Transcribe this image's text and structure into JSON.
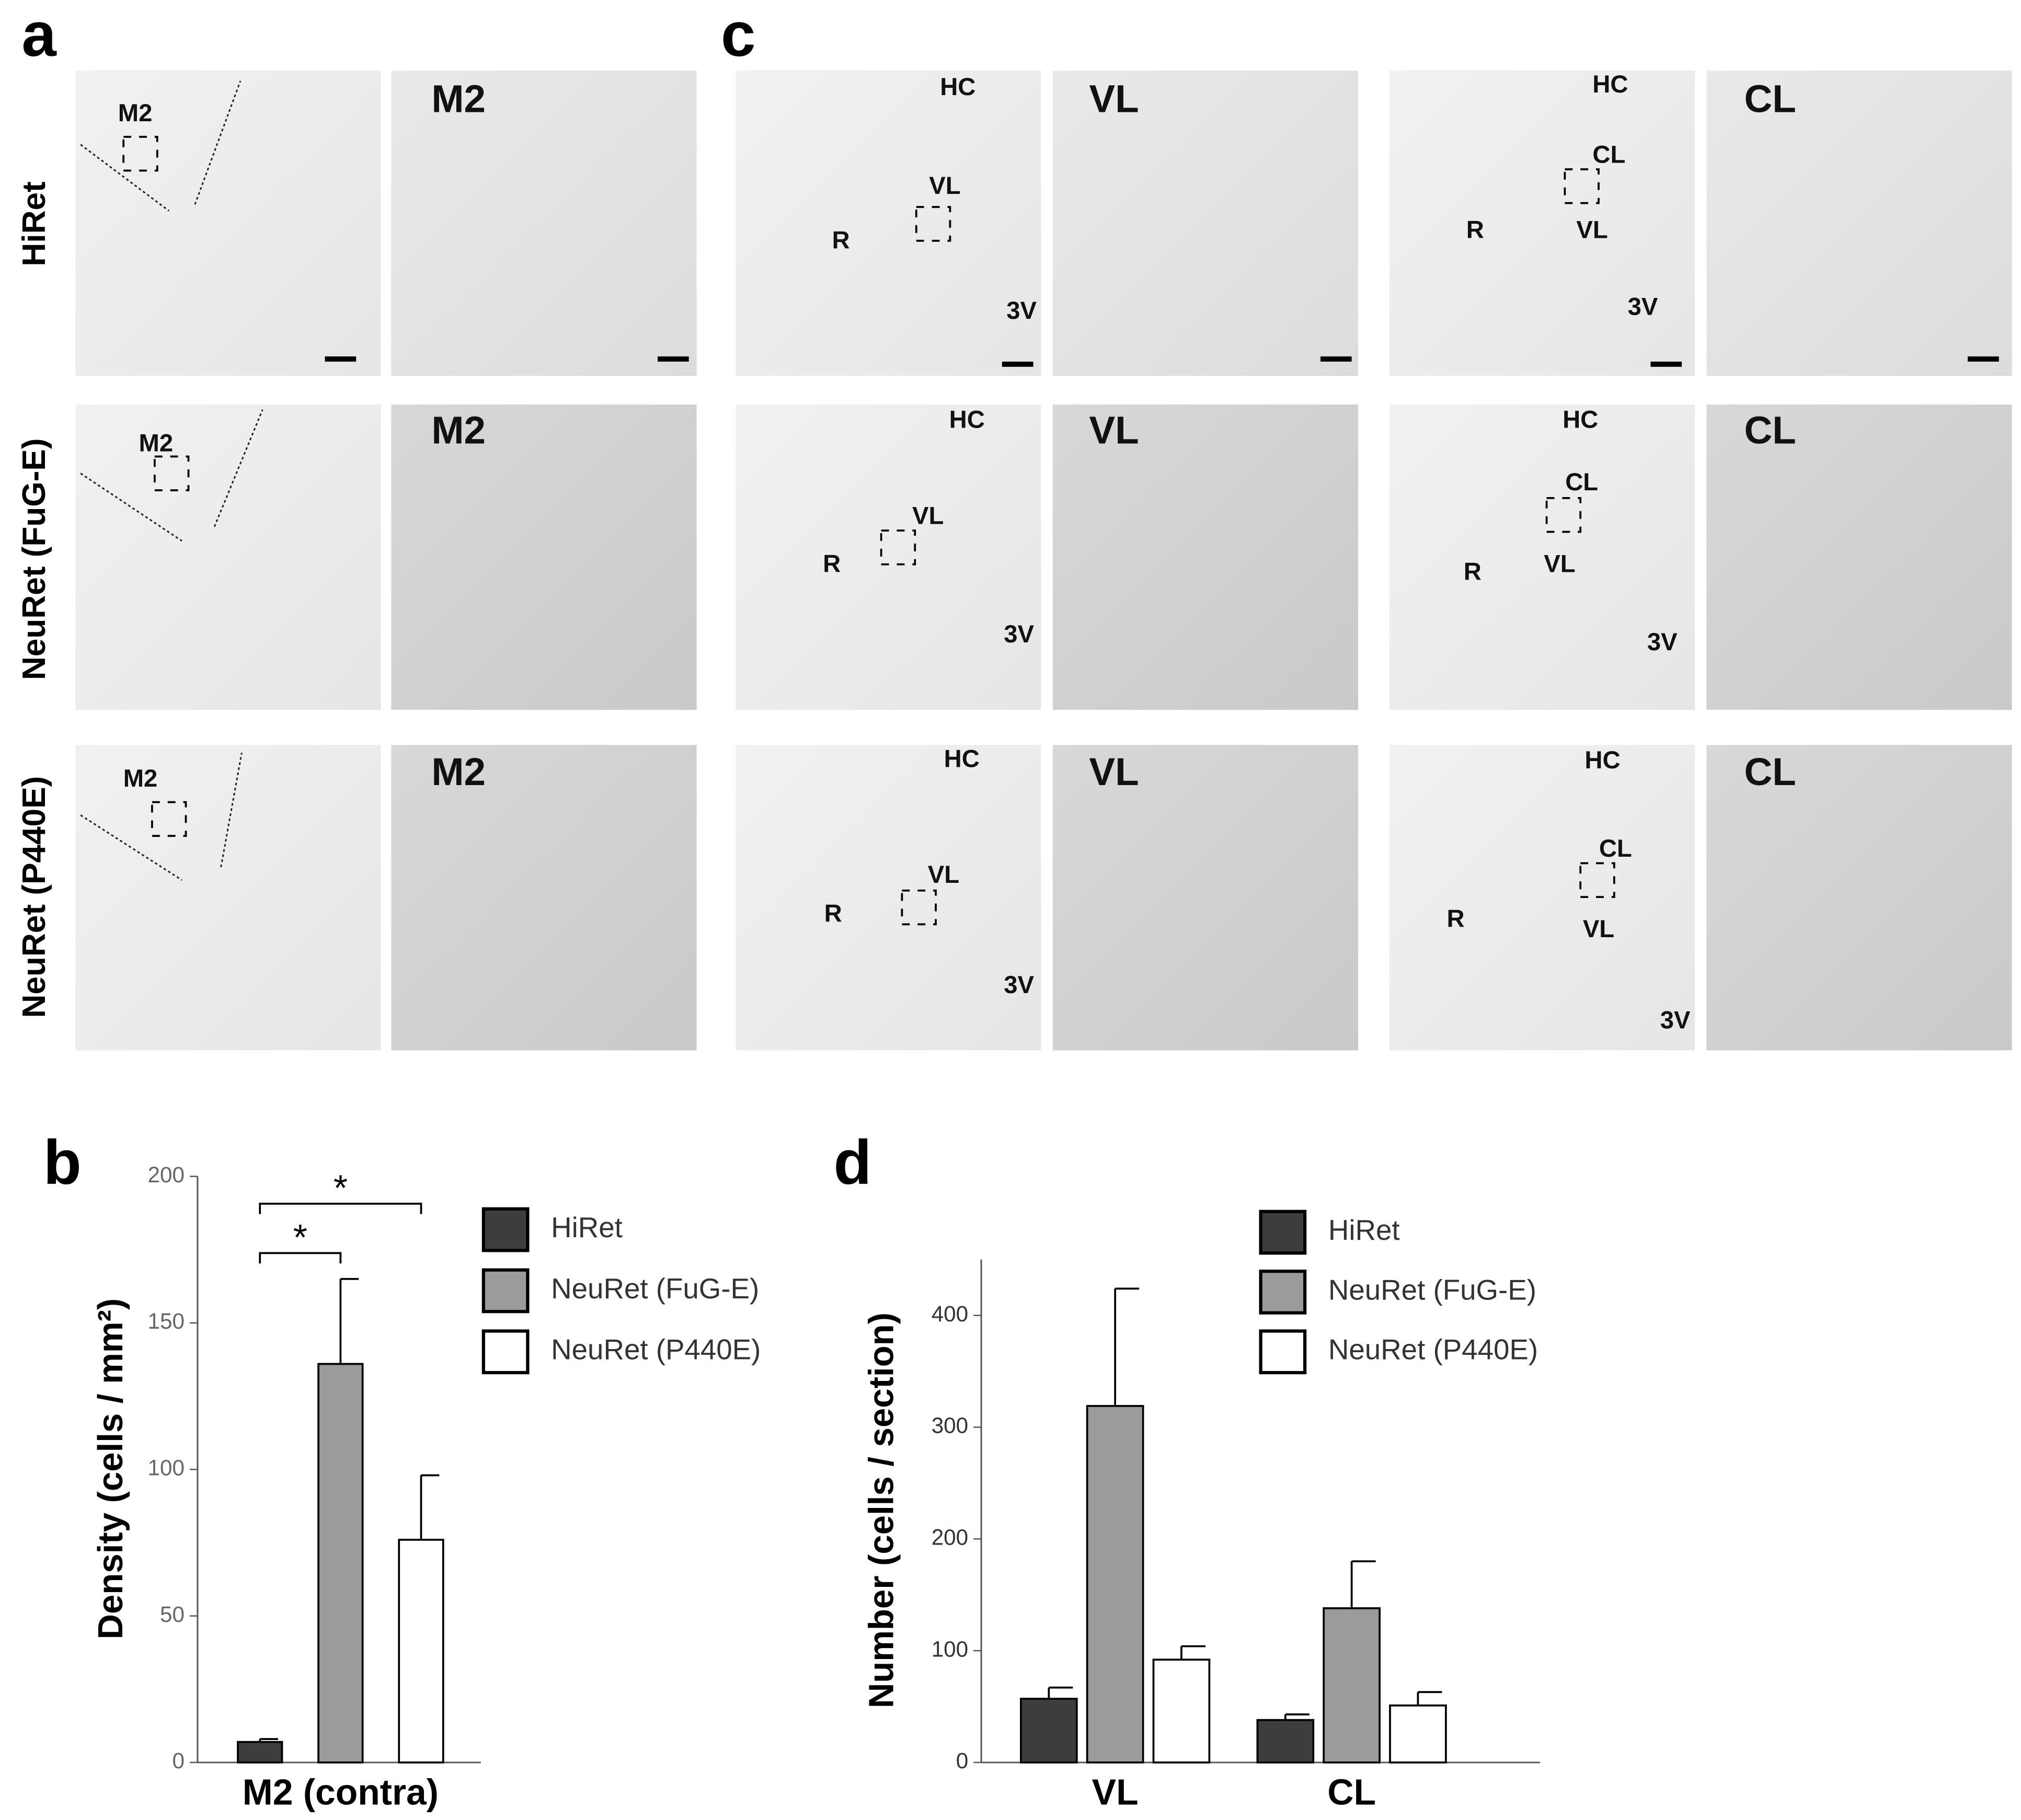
{
  "panel_labels": [
    "a",
    "c",
    "b",
    "d"
  ],
  "row_labels": [
    "HiRet",
    "NeuRet (FuG-E)",
    "NeuRet (P440E)"
  ],
  "micrographs": [
    [
      [
        "M2"
      ],
      [
        "M2"
      ],
      [
        "HC",
        "VL",
        "R",
        "3V"
      ],
      [
        "VL"
      ],
      [
        "HC",
        "CL",
        "R",
        "VL",
        "3V"
      ],
      [
        "CL"
      ]
    ],
    [
      [
        "M2"
      ],
      [
        "M2"
      ],
      [
        "HC",
        "VL",
        "R",
        "3V"
      ],
      [
        "VL"
      ],
      [
        "HC",
        "CL",
        "R",
        "VL",
        "3V"
      ],
      [
        "CL"
      ]
    ],
    [
      [
        "M2"
      ],
      [
        "M2"
      ],
      [
        "HC",
        "VL",
        "R",
        "3V"
      ],
      [
        "VL"
      ],
      [
        "HC",
        "CL",
        "R",
        "VL",
        "3V"
      ],
      [
        "CL"
      ]
    ]
  ],
  "chart_data": [
    {
      "type": "bar",
      "y_label": "Density (cells / mm²)",
      "categories": [
        "M2 (contra)"
      ],
      "series": [
        {
          "name": "HiRet",
          "color": "#3d3d3d",
          "values": [
            7
          ],
          "errors": [
            1
          ]
        },
        {
          "name": "NeuRet (FuG-E)",
          "color": "#9b9b9b",
          "values": [
            136
          ],
          "errors": [
            29
          ]
        },
        {
          "name": "NeuRet (P440E)",
          "color": "#ffffff",
          "values": [
            76
          ],
          "errors": [
            22
          ]
        }
      ],
      "ylim": [
        0,
        200
      ],
      "yticks": [
        0,
        50,
        100,
        150,
        200
      ],
      "annotations": [
        "*",
        "*"
      ]
    },
    {
      "type": "bar",
      "y_label": "Number (cells / section)",
      "categories": [
        "VL",
        "CL"
      ],
      "series": [
        {
          "name": "HiRet",
          "color": "#3d3d3d",
          "values": [
            57,
            38
          ],
          "errors": [
            10,
            5
          ]
        },
        {
          "name": "NeuRet (FuG-E)",
          "color": "#9b9b9b",
          "values": [
            319,
            138
          ],
          "errors": [
            105,
            42
          ]
        },
        {
          "name": "NeuRet (P440E)",
          "color": "#ffffff",
          "values": [
            92,
            51
          ],
          "errors": [
            12,
            12
          ]
        }
      ],
      "ylim": [
        0,
        450
      ],
      "yticks": [
        0,
        100,
        200,
        300,
        400
      ]
    }
  ]
}
